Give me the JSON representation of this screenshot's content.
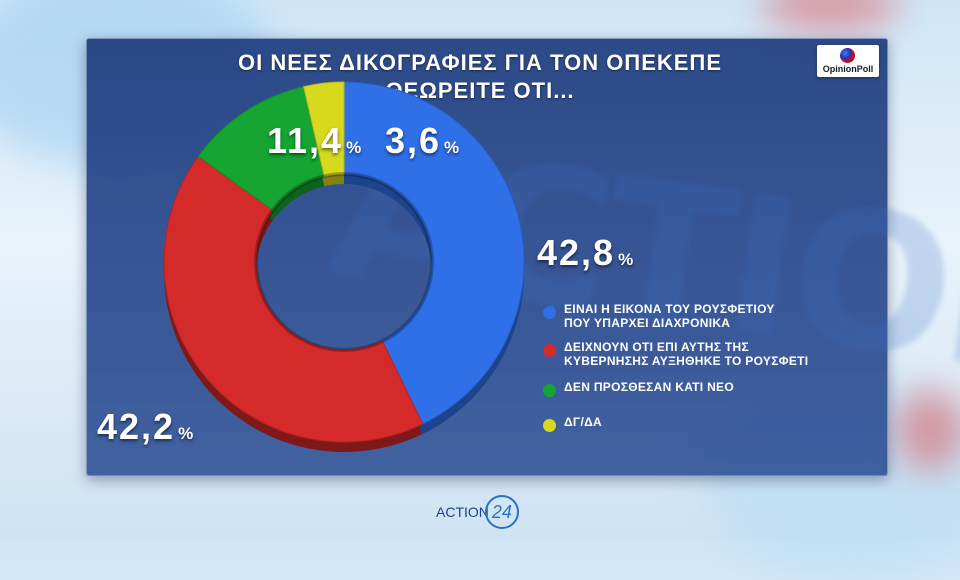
{
  "broadcast": {
    "background_word": "ACTION",
    "footer_logo_text": "ACTION",
    "footer_logo_number": "24"
  },
  "poll_logo": {
    "text": "OpinionPoll"
  },
  "chart_data": {
    "type": "pie",
    "variant": "donut",
    "title_lines": [
      "ΟΙ ΝΕΕΣ ΔΙΚΟΓΡΑΦΙΕΣ ΓΙΑ ΤΟΝ ΟΠΕΚΕΠΕ",
      "ΘΕΩΡΕΙΤΕ ΟΤΙ..."
    ],
    "unit": "%",
    "slices": [
      {
        "label": "ΕΙΝΑΙ Η ΕΙΚΟΝΑ ΤΟΥ ΡΟΥΣΦΕΤΙΟΥ ΠΟΥ ΥΠΑΡΧΕΙ ΔΙΑΧΡΟΝΙΚΑ",
        "label_lines": [
          "ΕΙΝΑΙ Η ΕΙΚΟΝΑ ΤΟΥ ΡΟΥΣΦΕΤΙΟΥ",
          "ΠΟΥ ΥΠΑΡΧΕΙ ΔΙΑΧΡΟΝΙΚΑ"
        ],
        "value": 42.8,
        "display": "42,8",
        "color": "#2f6fe8"
      },
      {
        "label": "ΔΕΙΧΝΟΥΝ ΟΤΙ ΕΠΙ ΑΥΤΗΣ ΤΗΣ ΚΥΒΕΡΝΗΣΗΣ ΑΥΞΗΘΗΚΕ ΤΟ ΡΟΥΣΦΕΤΙ",
        "label_lines": [
          "ΔΕΙΧΝΟΥΝ ΟΤΙ ΕΠΙ ΑΥΤΗΣ ΤΗΣ",
          "ΚΥΒΕΡΝΗΣΗΣ ΑΥΞΗΘΗΚΕ ΤΟ ΡΟΥΣΦΕΤΙ"
        ],
        "value": 42.2,
        "display": "42,2",
        "color": "#d42a2a"
      },
      {
        "label": "ΔΕΝ ΠΡΟΣΘΕΣΑΝ ΚΑΤΙ ΝΕΟ",
        "label_lines": [
          "ΔΕΝ ΠΡΟΣΘΕΣΑΝ ΚΑΤΙ ΝΕΟ"
        ],
        "value": 11.4,
        "display": "11,4",
        "color": "#16a532"
      },
      {
        "label": "ΔΓ/ΔΑ",
        "label_lines": [
          "ΔΓ/ΔΑ"
        ],
        "value": 3.6,
        "display": "3,6",
        "color": "#d8d81e"
      }
    ],
    "legend_position": "right"
  }
}
